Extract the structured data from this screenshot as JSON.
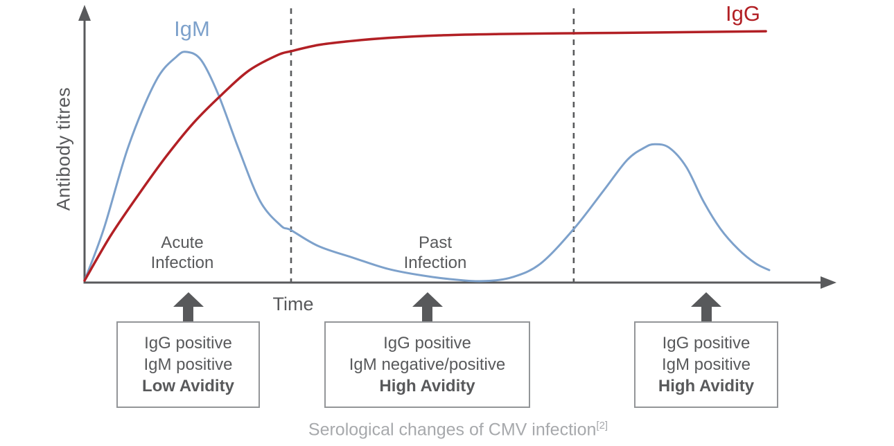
{
  "chart_data": {
    "type": "line",
    "title": "Serological changes of CMV infection",
    "xlabel": "Time",
    "ylabel": "Antibody titres",
    "x_range": [
      0,
      100
    ],
    "y_range": [
      0,
      105
    ],
    "grid": false,
    "axis_color": "#595a5c",
    "x_axis_has_arrow": true,
    "y_axis_has_arrow": true,
    "series": [
      {
        "name": "IgM",
        "color": "#7da1cb",
        "stroke_width": 3,
        "x": [
          0,
          2.8,
          6.4,
          10.4,
          13.4,
          14.9,
          17,
          19.5,
          22.5,
          25.6,
          28.6,
          30.1,
          34.1,
          39.2,
          44.2,
          49.3,
          54.3,
          58.4,
          62.4,
          66.5,
          71.3,
          75.6,
          79.1,
          81.6,
          83.1,
          85.2,
          87.7,
          90.2,
          92.7,
          95.3,
          97.8,
          99.8
        ],
        "y": [
          0.8,
          21.5,
          54.7,
          80.9,
          90.6,
          92.5,
          89.2,
          75.4,
          53.3,
          32.6,
          22.9,
          21,
          14.6,
          9.9,
          5.5,
          2.8,
          1.1,
          0.6,
          2.2,
          7.7,
          21.5,
          36.7,
          49.2,
          54.1,
          55.5,
          54.1,
          46.4,
          32.6,
          21.5,
          13.3,
          7.7,
          5
        ]
      },
      {
        "name": "IgG",
        "color": "#b22025",
        "stroke_width": 3.5,
        "x": [
          0,
          3.8,
          7.9,
          11.9,
          16,
          20,
          24,
          28.1,
          30.1,
          34.1,
          38.2,
          44.2,
          52.3,
          60.4,
          71.5,
          83.6,
          99.3
        ],
        "y": [
          0.8,
          18.8,
          35.4,
          50.6,
          64.4,
          75.4,
          85.1,
          91.2,
          92.8,
          95.3,
          96.7,
          98.1,
          99.2,
          99.7,
          100,
          100.3,
          100.8
        ]
      }
    ],
    "dashed_lines": [
      {
        "x": 30.1,
        "style": "dashed",
        "color": "#595a5c"
      },
      {
        "x": 71.3,
        "style": "dashed",
        "color": "#595a5c"
      }
    ],
    "annotations": [
      {
        "line1": "Acute",
        "line2": "Infection",
        "region": "before first dashed line"
      },
      {
        "line1": "Past",
        "line2": "Infection",
        "region": "between dashed lines"
      }
    ]
  },
  "labels": {
    "y_axis": "Antibody titres",
    "time": "Time"
  },
  "boxes": [
    {
      "line1": "IgG positive",
      "line2": "IgM positive",
      "line3": "Low Avidity"
    },
    {
      "line1": "IgG positive",
      "line2": "IgM negative/positive",
      "line3": "High Avidity"
    },
    {
      "line1": "IgG positive",
      "line2": "IgM positive",
      "line3": "High Avidity"
    }
  ],
  "caption": {
    "text": "Serological changes of CMV infection",
    "reference": "[2]"
  },
  "colors": {
    "text_gray": "#58595b",
    "caption_gray": "#a7a9ac",
    "box_border_gray": "#939598",
    "igm_blue": "#7da1cb",
    "igg_red": "#b22025",
    "axis_gray": "#595a5c"
  }
}
